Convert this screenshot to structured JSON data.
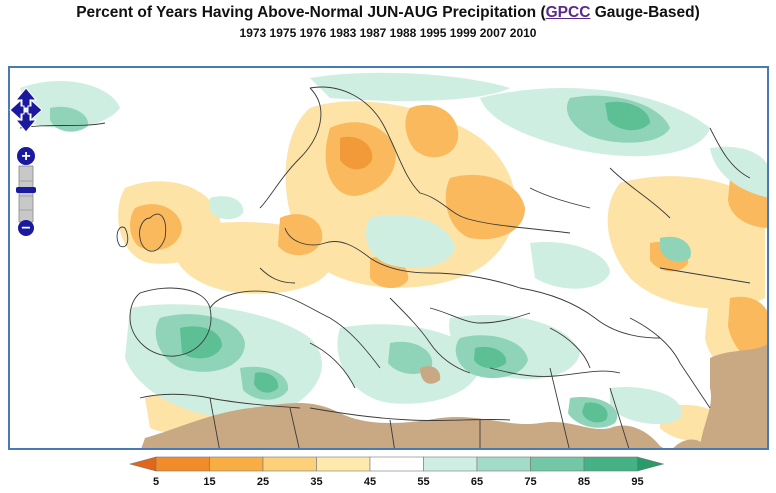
{
  "title": {
    "prefix": "Percent of Years Having Above-Normal JUN-AUG Precipitation (",
    "link": "GPCC",
    "suffix": " Gauge-Based)"
  },
  "subtitle": "1973 1975 1976 1983 1987 1988 1995 1999 2007 2010",
  "map": {
    "controls": {
      "pan": "pan-arrows-icon",
      "zoom_in": "+",
      "zoom_out": "−"
    }
  },
  "legend": {
    "ticks": [
      "5",
      "15",
      "25",
      "35",
      "45",
      "55",
      "65",
      "75",
      "85",
      "95"
    ],
    "colors": [
      "#e0661a",
      "#f28c2a",
      "#f9ad45",
      "#fdd07a",
      "#feeaad",
      "#ffffff",
      "#cfeee2",
      "#a2dcc6",
      "#72c8a6",
      "#45b285",
      "#2a9a6b"
    ]
  },
  "colors": {
    "below": "#f9b95c",
    "below_light": "#fde3a6",
    "above": "#8fd4b8",
    "above_strong": "#5dbf94",
    "dry_mask": "#c9a983",
    "border": "#3a3a3a",
    "frame": "#4a7ab4",
    "control": "#1a1a9e"
  }
}
